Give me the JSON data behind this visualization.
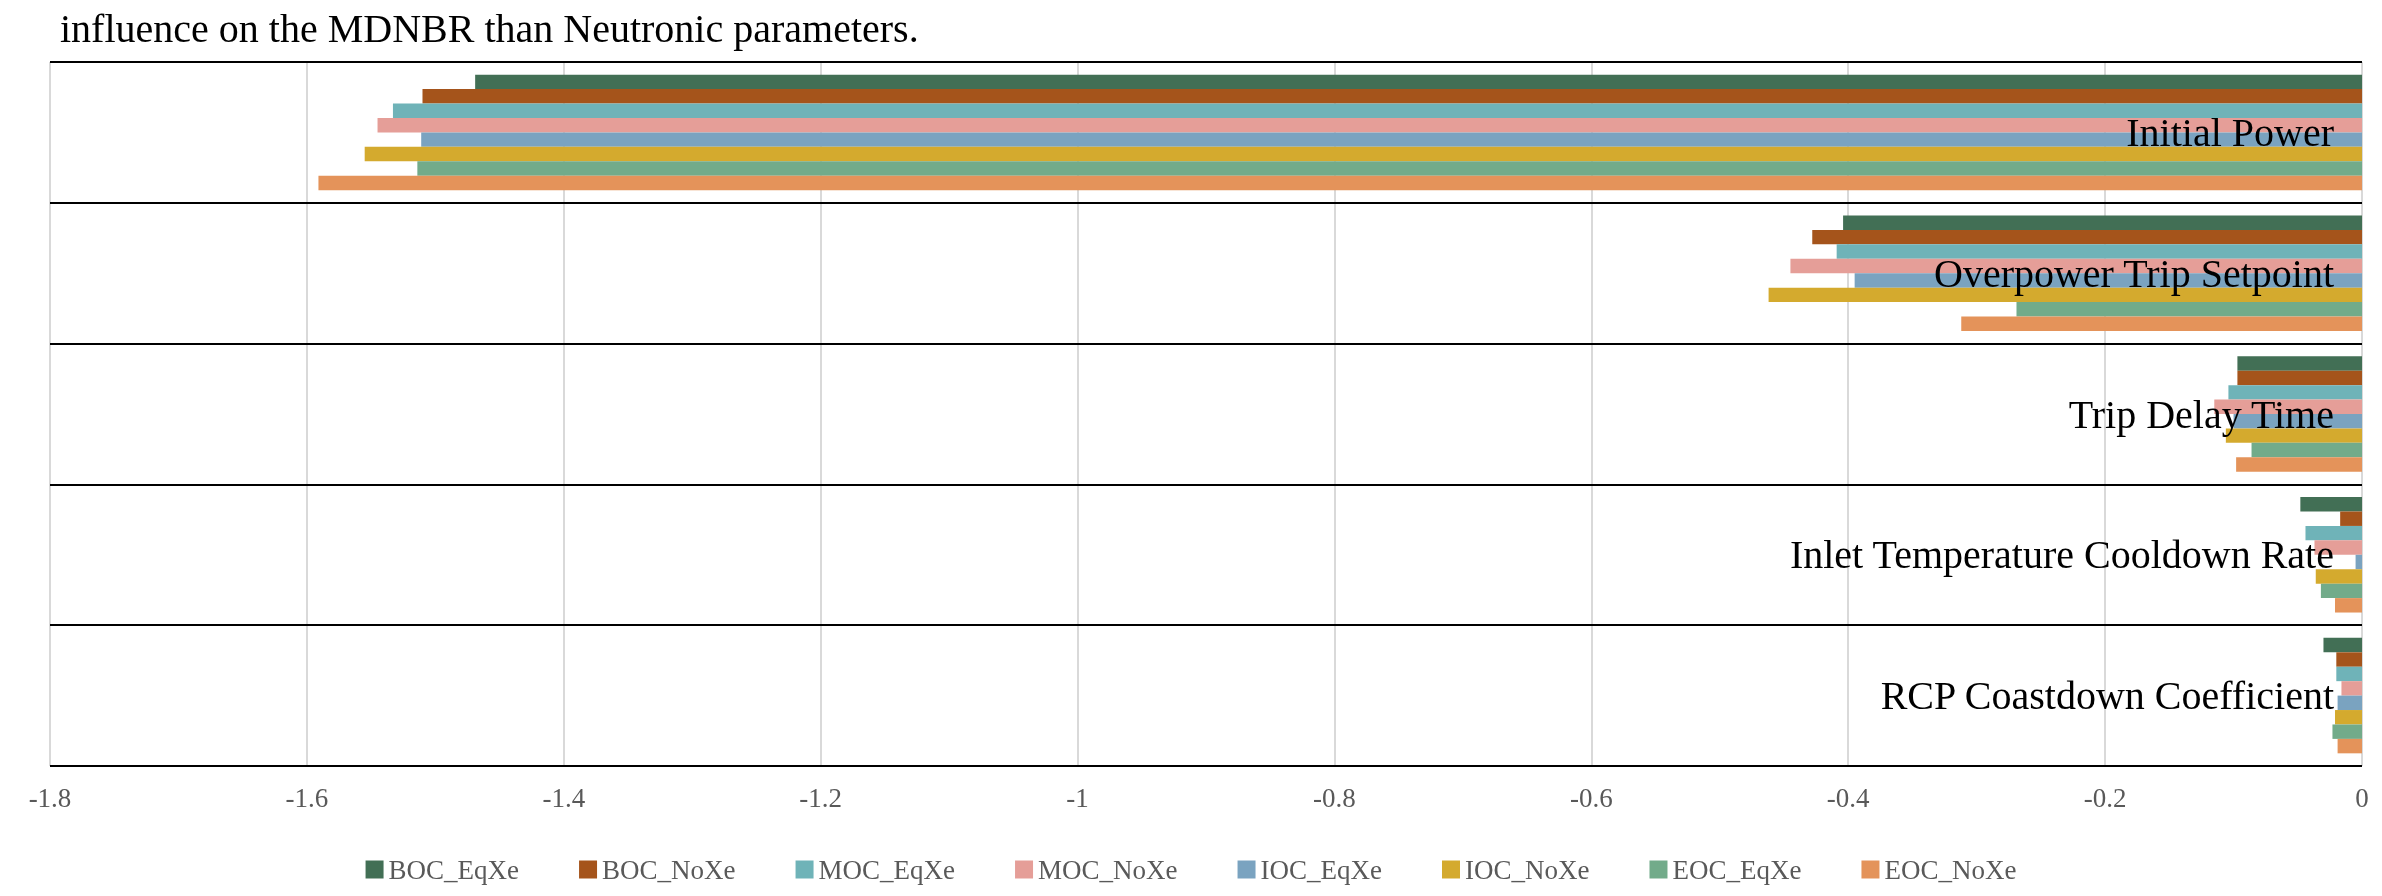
{
  "chart_data": {
    "type": "bar",
    "orientation": "horizontal",
    "annotations": [
      "influence on the MDNBR than Neutronic parameters."
    ],
    "categories": [
      "Initial Power",
      "Overpower Trip Setpoint",
      "Trip Delay Time",
      "Inlet Temperature Cooldown Rate",
      "RCP Coastdown Coefficient"
    ],
    "series": [
      {
        "name": "BOC_EqXe",
        "color": "#426f55",
        "values": [
          -1.469,
          -0.404,
          -0.097,
          -0.048,
          -0.03
        ]
      },
      {
        "name": "BOC_NoXe",
        "color": "#a5541b",
        "values": [
          -1.51,
          -0.428,
          -0.097,
          -0.017,
          -0.02
        ]
      },
      {
        "name": "MOC_EqXe",
        "color": "#6fb3b8",
        "values": [
          -1.533,
          -0.409,
          -0.104,
          -0.044,
          -0.02
        ]
      },
      {
        "name": "MOC_NoXe",
        "color": "#e59e98",
        "values": [
          -1.545,
          -0.445,
          -0.115,
          -0.037,
          -0.016
        ]
      },
      {
        "name": "IOC_EqXe",
        "color": "#7aa3c0",
        "values": [
          -1.511,
          -0.395,
          -0.1,
          -0.005,
          -0.019
        ]
      },
      {
        "name": "IOC_NoXe",
        "color": "#d4aa2e",
        "values": [
          -1.555,
          -0.462,
          -0.106,
          -0.036,
          -0.021
        ]
      },
      {
        "name": "EOC_EqXe",
        "color": "#72ab8a",
        "values": [
          -1.514,
          -0.269,
          -0.086,
          -0.032,
          -0.023
        ]
      },
      {
        "name": "EOC_NoXe",
        "color": "#e4935a",
        "values": [
          -1.591,
          -0.312,
          -0.098,
          -0.021,
          -0.019
        ]
      }
    ],
    "xlim": [
      -1.8,
      0
    ],
    "xticks": [
      -1.8,
      -1.6,
      -1.4,
      -1.2,
      -1,
      -0.8,
      -0.6,
      -0.4,
      -0.2,
      0
    ],
    "grid": "x",
    "legend": "bottom"
  }
}
